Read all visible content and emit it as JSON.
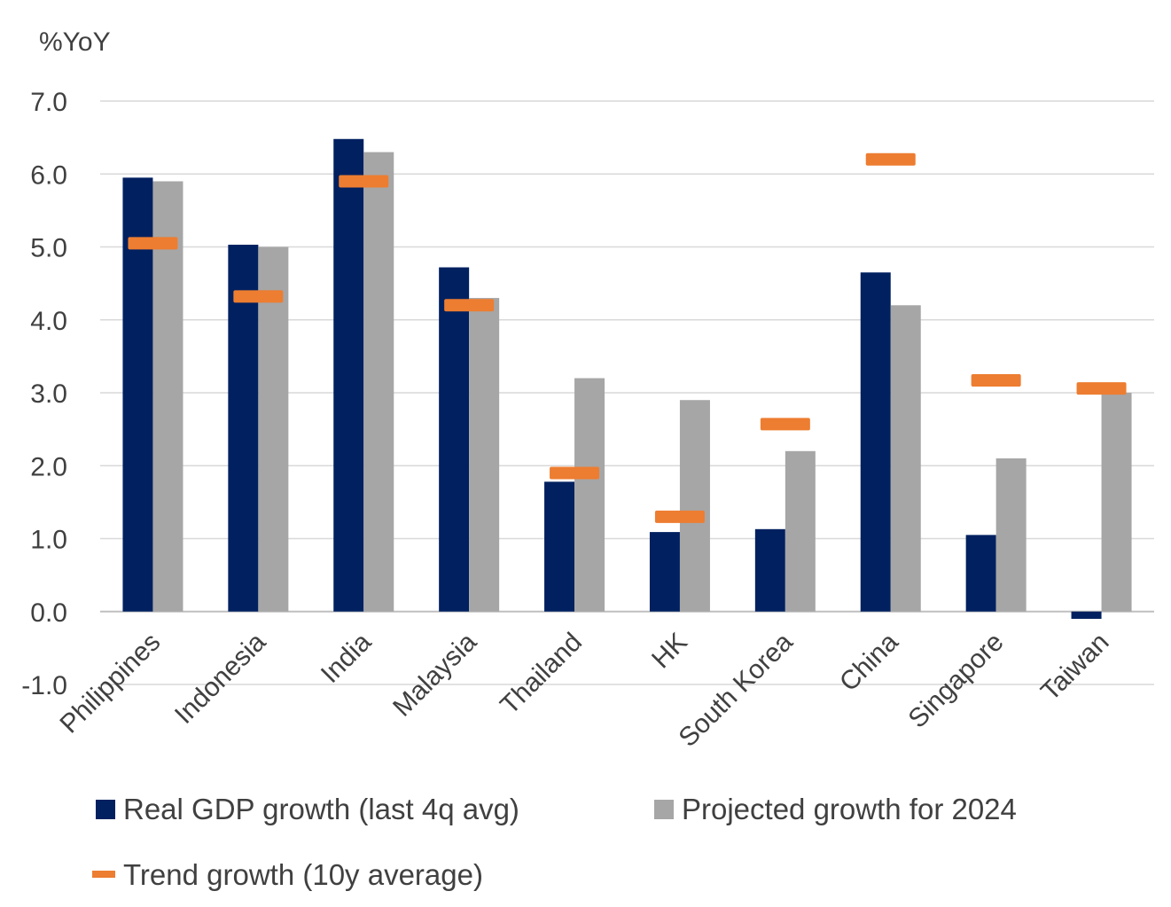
{
  "chart_data": {
    "type": "bar",
    "title": "",
    "ylabel": "%YoY",
    "xlabel": "",
    "ylim": [
      -1.0,
      7.0
    ],
    "yticks": [
      "7.0",
      "6.0",
      "5.0",
      "4.0",
      "3.0",
      "2.0",
      "1.0",
      "0.0",
      "-1.0"
    ],
    "categories": [
      "Philippines",
      "Indonesia",
      "India",
      "Malaysia",
      "Thailand",
      "HK",
      "South Korea",
      "China",
      "Singapore",
      "Taiwan"
    ],
    "series": [
      {
        "name": "Real GDP growth (last 4q avg)",
        "kind": "bar",
        "color": "#002060",
        "values": [
          5.95,
          5.03,
          6.48,
          4.72,
          1.78,
          1.09,
          1.13,
          4.65,
          1.05,
          -0.1
        ]
      },
      {
        "name": "Projected growth for 2024",
        "kind": "bar",
        "color": "#a6a6a6",
        "values": [
          5.9,
          5.0,
          6.3,
          4.3,
          3.2,
          2.9,
          2.2,
          4.2,
          2.1,
          3.0
        ]
      },
      {
        "name": "Trend growth (10y average)",
        "kind": "marker",
        "color": "#ed7d31",
        "values": [
          5.05,
          4.32,
          5.9,
          4.2,
          1.9,
          1.3,
          2.57,
          6.2,
          3.17,
          3.06
        ]
      }
    ],
    "legend": "bottom",
    "grid": true
  }
}
